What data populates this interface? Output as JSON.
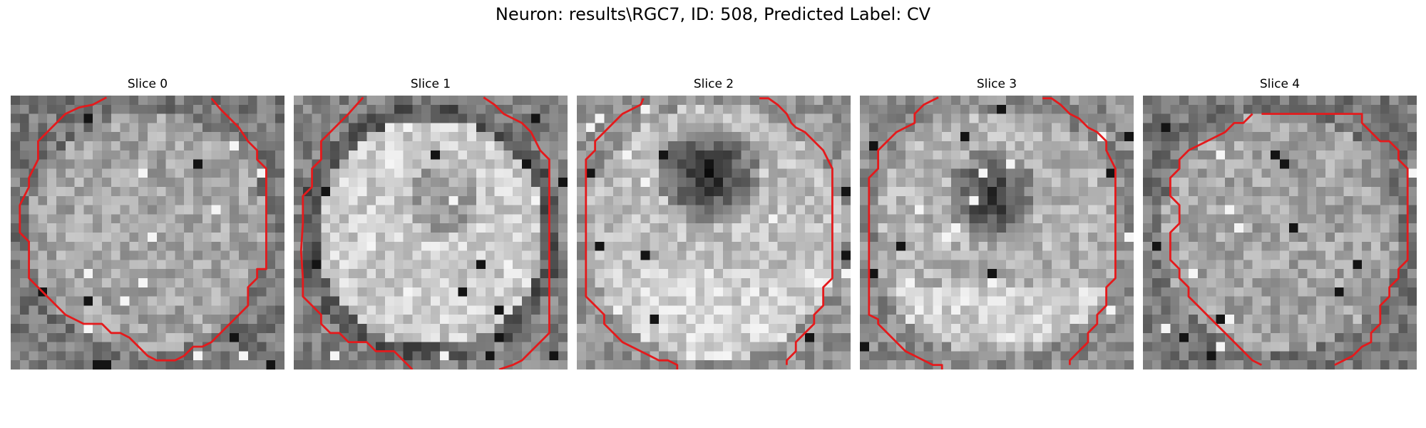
{
  "figure": {
    "title": "Neuron: results\\RGC7, ID: 508, Predicted Label: CV"
  },
  "panels": [
    {
      "title": "Slice 0",
      "style": "dim-texture"
    },
    {
      "title": "Slice 1",
      "style": "bright-ring"
    },
    {
      "title": "Slice 2",
      "style": "dark-center-high"
    },
    {
      "title": "Slice 3",
      "style": "dark-center-mid"
    },
    {
      "title": "Slice 4",
      "style": "dim-texture"
    }
  ],
  "colors": {
    "contour": "#e41a1c",
    "background": "#ffffff"
  }
}
